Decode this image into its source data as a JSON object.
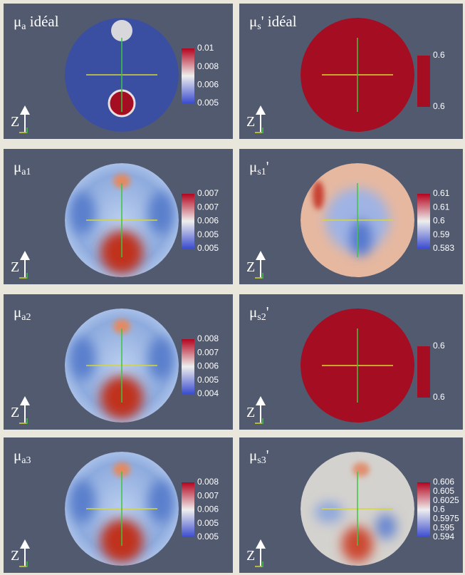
{
  "panels": [
    {
      "title": {
        "symbol": "μ",
        "sub": "a",
        "suffix": " idéal"
      },
      "axis_label": "Z",
      "colorbar_labels": [
        "0.01",
        "0.008",
        "0.006",
        "0.005"
      ]
    },
    {
      "title": {
        "symbol": "μ",
        "sub": "s",
        "suffix": "' idéal"
      },
      "axis_label": "Z",
      "colorbar_labels": [
        "0.6",
        "0.6"
      ]
    },
    {
      "title": {
        "symbol": "μ",
        "sub": "a1",
        "suffix": ""
      },
      "axis_label": "Z",
      "colorbar_labels": [
        "0.007",
        "0.007",
        "0.006",
        "0.005",
        "0.005"
      ]
    },
    {
      "title": {
        "symbol": "μ",
        "sub": "s1",
        "suffix": "'"
      },
      "axis_label": "Z",
      "colorbar_labels": [
        "0.61",
        "0.61",
        "0.6",
        "0.59",
        "0.583"
      ]
    },
    {
      "title": {
        "symbol": "μ",
        "sub": "a2",
        "suffix": ""
      },
      "axis_label": "Z",
      "colorbar_labels": [
        "0.008",
        "0.007",
        "0.006",
        "0.005",
        "0.004"
      ]
    },
    {
      "title": {
        "symbol": "μ",
        "sub": "s2",
        "suffix": "'"
      },
      "axis_label": "Z",
      "colorbar_labels": [
        "0.6",
        "0.6"
      ]
    },
    {
      "title": {
        "symbol": "μ",
        "sub": "a3",
        "suffix": ""
      },
      "axis_label": "Z",
      "colorbar_labels": [
        "0.008",
        "0.007",
        "0.006",
        "0.005",
        "0.005"
      ]
    },
    {
      "title": {
        "symbol": "μ",
        "sub": "s3",
        "suffix": "'"
      },
      "axis_label": "Z",
      "colorbar_labels": [
        "0.606",
        "0.605",
        "0.6025",
        "0.6",
        "0.5975",
        "0.595",
        "0.594"
      ]
    }
  ]
}
